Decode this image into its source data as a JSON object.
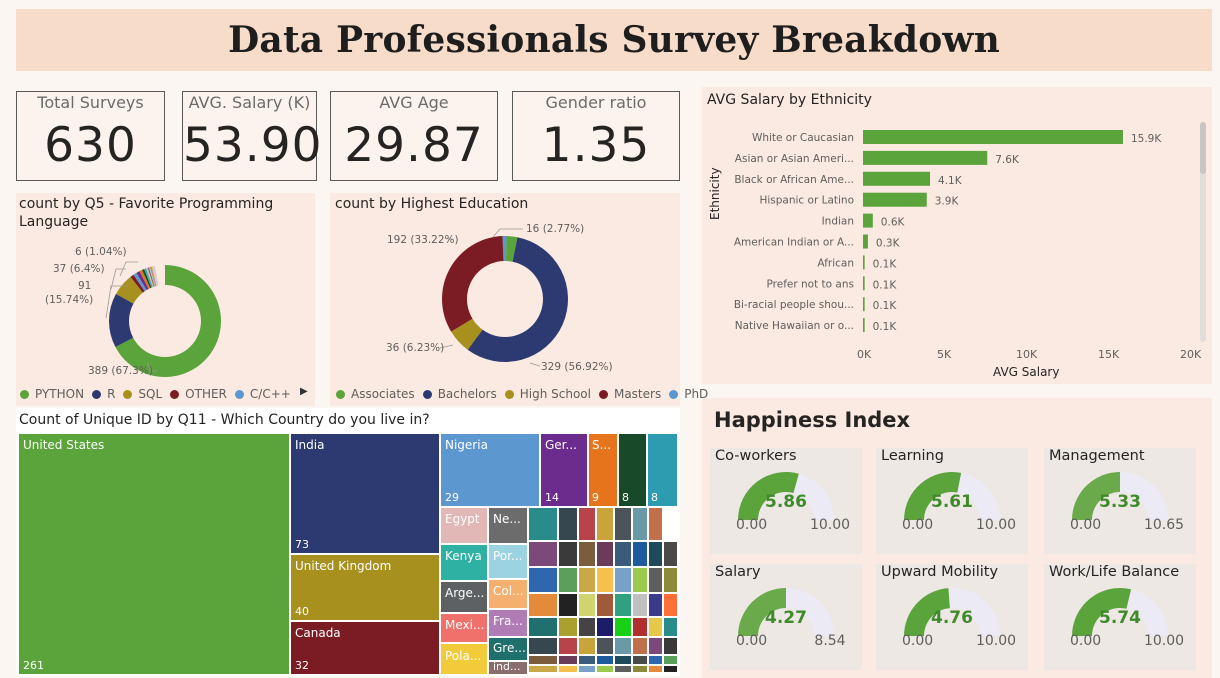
{
  "title": "Data Professionals Survey Breakdown",
  "kpis": [
    {
      "label": "Total Surveys",
      "value": "630"
    },
    {
      "label": "AVG. Salary (K)",
      "value": "53.90"
    },
    {
      "label": "AVG Age",
      "value": "29.87"
    },
    {
      "label": "Gender ratio",
      "value": "1.35"
    }
  ],
  "language_chart": {
    "title": "count by Q5 - Favorite Programming Language",
    "labels": {
      "python": "389 (67.3%)",
      "r_count": "91",
      "r_pct": "(15.74%)",
      "sql": "37 (6.4%)",
      "other": "6 (1.04%)"
    },
    "legend": [
      "PYTHON",
      "R",
      "SQL",
      "OTHER",
      "C/C++"
    ],
    "colors": [
      "#5ba33b",
      "#2d3a72",
      "#a8901e",
      "#7b1c24",
      "#5c97d0"
    ]
  },
  "education_chart": {
    "title": "count by Highest Education",
    "labels": {
      "phd": "16 (2.77%)",
      "masters": "192 (33.22%)",
      "highschool": "36 (6.23%)",
      "bachelors": "329 (56.92%)"
    },
    "legend": [
      "Associates",
      "Bachelors",
      "High School",
      "Masters",
      "PhD"
    ],
    "colors": [
      "#5ba33b",
      "#2d3a72",
      "#a8901e",
      "#7b1c24",
      "#5c97d0"
    ]
  },
  "country_treemap": {
    "title": "Count of Unique ID by Q11 - Which Country do you live in?",
    "tiles": [
      {
        "label": "United States",
        "value": "261"
      },
      {
        "label": "India",
        "value": "73"
      },
      {
        "label": "United Kingdom",
        "value": "40"
      },
      {
        "label": "Canada",
        "value": "32"
      },
      {
        "label": "Nigeria",
        "value": "29"
      },
      {
        "label": "Ger...",
        "value": "14"
      },
      {
        "label": "S...",
        "value": "9"
      },
      {
        "label": "",
        "value": "8"
      },
      {
        "label": "",
        "value": "8"
      },
      {
        "label": "Egypt",
        "value": ""
      },
      {
        "label": "Ne...",
        "value": ""
      },
      {
        "label": "Kenya",
        "value": ""
      },
      {
        "label": "Por...",
        "value": ""
      },
      {
        "label": "Arge...",
        "value": ""
      },
      {
        "label": "Col...",
        "value": ""
      },
      {
        "label": "Mexi...",
        "value": ""
      },
      {
        "label": "Fra...",
        "value": ""
      },
      {
        "label": "Pola...",
        "value": ""
      },
      {
        "label": "Gre...",
        "value": ""
      },
      {
        "label": "ind...",
        "value": ""
      }
    ]
  },
  "ethnicity_chart": {
    "title": "AVG Salary by Ethnicity",
    "ylabel": "Ethnicity",
    "xlabel": "AVG Salary",
    "x_ticks": [
      "0K",
      "5K",
      "10K",
      "15K",
      "20K"
    ]
  },
  "chart_data": {
    "type": "bar",
    "title": "AVG Salary by Ethnicity",
    "xlabel": "AVG Salary",
    "ylabel": "Ethnicity",
    "orientation": "horizontal",
    "categories": [
      "White or Caucasian",
      "Asian or Asian Ameri...",
      "Black or African Ame...",
      "Hispanic or Latino",
      "Indian",
      "American Indian or A...",
      "African",
      "Prefer not to ans",
      "Bi-racial people shou...",
      "Native Hawaiian or o..."
    ],
    "values": [
      15900,
      7600,
      4100,
      3900,
      600,
      300,
      100,
      100,
      100,
      100
    ],
    "data_labels": [
      "15.9K",
      "7.6K",
      "4.1K",
      "3.9K",
      "0.6K",
      "0.3K",
      "0.1K",
      "0.1K",
      "0.1K",
      "0.1K"
    ],
    "xlim": [
      0,
      20000
    ],
    "color": "#5ba33b"
  },
  "happiness": {
    "title": "Happiness Index",
    "gauges": [
      {
        "label": "Co-workers",
        "value": "5.86",
        "min": "0.00",
        "max": "10.00",
        "fraction": 0.586
      },
      {
        "label": "Learning",
        "value": "5.61",
        "min": "0.00",
        "max": "10.00",
        "fraction": 0.561
      },
      {
        "label": "Management",
        "value": "5.33",
        "min": "0.00",
        "max": "10.65",
        "fraction": 0.5
      },
      {
        "label": "Salary",
        "value": "4.27",
        "min": "0.00",
        "max": "8.54",
        "fraction": 0.5
      },
      {
        "label": "Upward Mobility",
        "value": "4.76",
        "min": "0.00",
        "max": "10.00",
        "fraction": 0.476
      },
      {
        "label": "Work/Life Balance",
        "value": "5.74",
        "min": "0.00",
        "max": "10.00",
        "fraction": 0.574
      }
    ]
  }
}
